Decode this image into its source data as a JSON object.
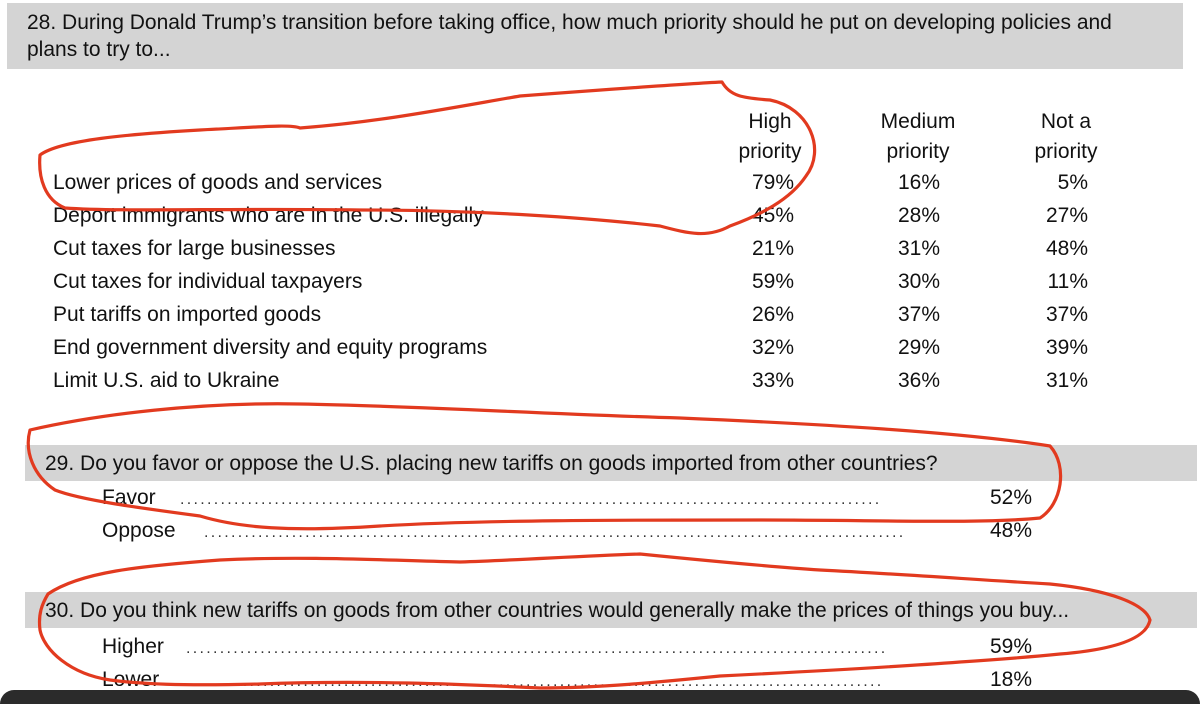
{
  "q28": {
    "question": "28. During Donald Trump’s transition before taking office, how much priority should he put on developing policies and plans to try to...",
    "columns": [
      {
        "line1": "High",
        "line2": "priority"
      },
      {
        "line1": "Medium",
        "line2": "priority"
      },
      {
        "line1": "Not a",
        "line2": "priority"
      }
    ],
    "rows": [
      {
        "label": "Lower prices of goods and services",
        "high": "79%",
        "medium": "16%",
        "not": "5%"
      },
      {
        "label": "Deport immigrants who are in the U.S. illegally",
        "high": "45%",
        "medium": "28%",
        "not": "27%"
      },
      {
        "label": "Cut taxes for large businesses",
        "high": "21%",
        "medium": "31%",
        "not": "48%"
      },
      {
        "label": "Cut taxes for individual taxpayers",
        "high": "59%",
        "medium": "30%",
        "not": "11%"
      },
      {
        "label": "Put tariffs on imported goods",
        "high": "26%",
        "medium": "37%",
        "not": "37%"
      },
      {
        "label": "End government diversity and equity programs",
        "high": "32%",
        "medium": "29%",
        "not": "39%"
      },
      {
        "label": "Limit U.S. aid to Ukraine",
        "high": "33%",
        "medium": "36%",
        "not": "31%"
      }
    ]
  },
  "q29": {
    "question": "29. Do you favor or oppose the U.S. placing new tariffs on goods imported from other countries?",
    "answers": [
      {
        "label": "Favor",
        "value": "52%"
      },
      {
        "label": "Oppose",
        "value": "48%"
      }
    ]
  },
  "q30": {
    "question": "30. Do you think new tariffs on goods from other countries would generally make the prices of things you buy...",
    "answers": [
      {
        "label": "Higher",
        "value": "59%"
      },
      {
        "label": "Lower",
        "value": "18%"
      }
    ]
  },
  "dot_leader": "........................................................................................................",
  "annotation_color": "#e23a1f"
}
